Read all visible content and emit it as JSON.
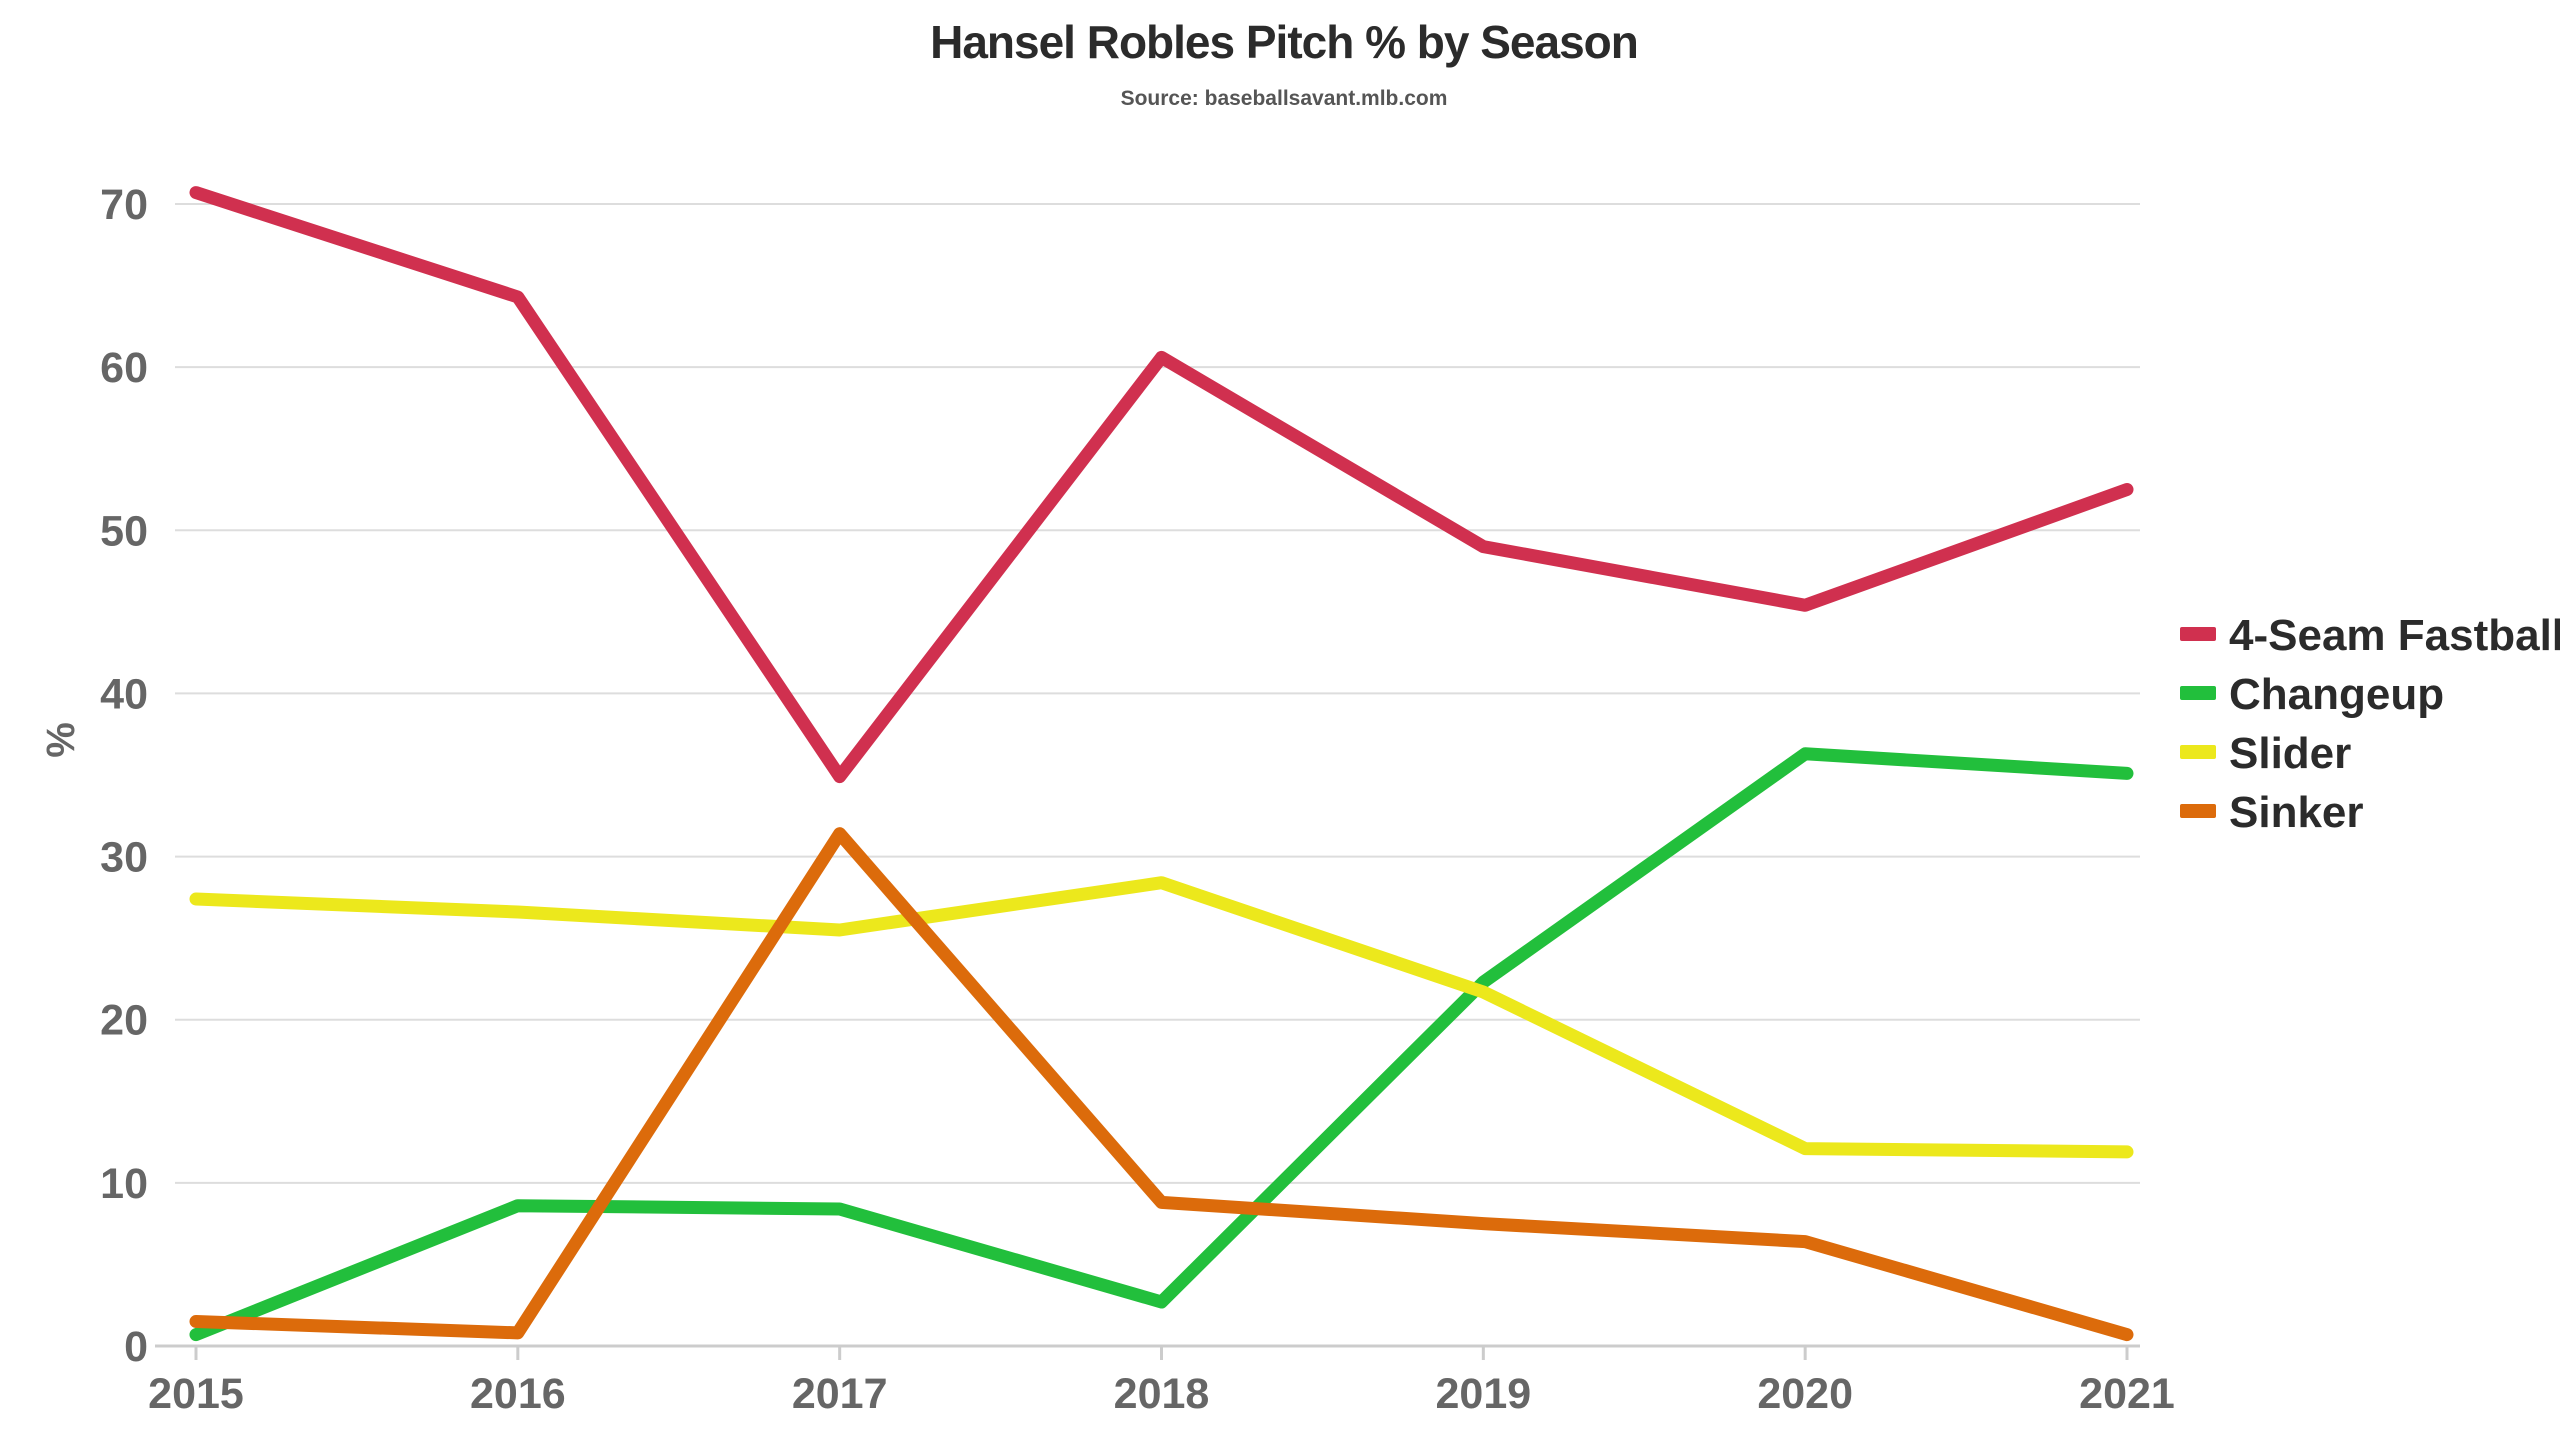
{
  "chart_data": {
    "type": "line",
    "title": "Hansel Robles Pitch % by Season",
    "subtitle": "Source: baseballsavant.mlb.com",
    "xlabel": "",
    "ylabel": "%",
    "x": [
      "2015",
      "2016",
      "2017",
      "2018",
      "2019",
      "2020",
      "2021"
    ],
    "ylim": [
      0,
      70
    ],
    "yticks": [
      0,
      10,
      20,
      30,
      40,
      50,
      60,
      70
    ],
    "grid": true,
    "legend_position": "right",
    "series": [
      {
        "name": "4-Seam Fastball",
        "color": "#d0304f",
        "values": [
          70.7,
          64.3,
          34.9,
          60.6,
          49.0,
          45.4,
          52.5
        ]
      },
      {
        "name": "Changeup",
        "color": "#22bf3c",
        "values": [
          0.7,
          8.6,
          8.4,
          2.7,
          22.3,
          36.3,
          35.1
        ]
      },
      {
        "name": "Slider",
        "color": "#ece81c",
        "values": [
          27.4,
          26.6,
          25.5,
          28.4,
          21.7,
          12.1,
          11.9
        ]
      },
      {
        "name": "Sinker",
        "color": "#dc6b0b",
        "values": [
          1.5,
          0.8,
          31.4,
          8.8,
          7.5,
          6.4,
          0.7
        ]
      }
    ]
  }
}
